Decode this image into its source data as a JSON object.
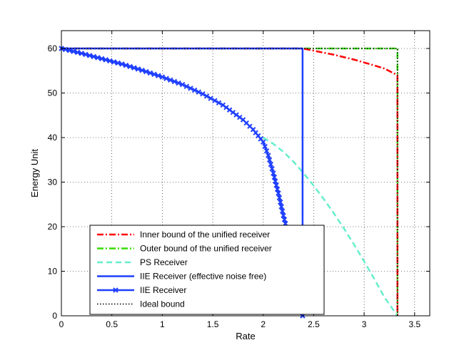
{
  "chart_data": {
    "type": "line",
    "title": "",
    "xlabel": "Rate",
    "ylabel": "Energy Unit",
    "xlim": [
      0,
      3.65
    ],
    "ylim": [
      0,
      64
    ],
    "xticks": [
      0,
      0.5,
      1,
      1.5,
      2,
      2.5,
      3,
      3.5
    ],
    "xtick_labels": [
      "0",
      "0.5",
      "1",
      "1.5",
      "2",
      "2.5",
      "3",
      "3.5"
    ],
    "yticks": [
      0,
      10,
      20,
      30,
      40,
      50,
      60
    ],
    "ytick_labels": [
      "0",
      "10",
      "20",
      "30",
      "40",
      "50",
      "60"
    ],
    "grid": true,
    "legend_position": "lower-left",
    "series": [
      {
        "name": "Inner bound of the unified receiver",
        "color": "#ff0000",
        "style": "dashdot",
        "x": [
          0,
          2.39,
          2.5,
          2.7,
          2.9,
          3.1,
          3.2,
          3.33,
          3.33,
          3.33
        ],
        "y": [
          60,
          60,
          59.5,
          58.6,
          57.5,
          56.2,
          55.5,
          54,
          20,
          0
        ]
      },
      {
        "name": "Outer bound of the unified receiver",
        "color": "#33dd00",
        "style": "dashdot",
        "x": [
          0,
          3.33,
          3.33
        ],
        "y": [
          60,
          60,
          0
        ]
      },
      {
        "name": "PS Receiver",
        "color": "#66eecc",
        "style": "dashed",
        "x": [
          2.0,
          2.1,
          2.2,
          2.3,
          2.4,
          2.5,
          2.6,
          2.7,
          2.8,
          2.9,
          3.0,
          3.1,
          3.2,
          3.33
        ],
        "y": [
          40,
          38.6,
          36.8,
          34.6,
          32.0,
          29.2,
          26.2,
          23.0,
          19.6,
          16.0,
          12.2,
          8.3,
          4.2,
          0
        ]
      },
      {
        "name": "IIE Receiver (effective noise free)",
        "color": "#1f3fff",
        "style": "solid",
        "x": [
          0,
          2.39,
          2.39
        ],
        "y": [
          60,
          60,
          0
        ]
      },
      {
        "name": "IIE Receiver",
        "color": "#1f3fff",
        "style": "solid-x",
        "x": [
          0,
          0.2,
          0.4,
          0.6,
          0.8,
          1.0,
          1.2,
          1.4,
          1.6,
          1.8,
          1.9,
          2.0,
          2.05,
          2.1,
          2.15,
          2.2,
          2.25,
          2.3,
          2.33,
          2.36,
          2.38,
          2.39
        ],
        "y": [
          60,
          58.9,
          57.7,
          56.5,
          55.1,
          53.6,
          51.9,
          49.8,
          47.3,
          44.0,
          41.8,
          39.0,
          36.0,
          32.0,
          27.5,
          22.5,
          18.0,
          12.5,
          8.0,
          4.0,
          1.5,
          0
        ]
      },
      {
        "name": "Ideal bound",
        "color": "#000000",
        "style": "dotted",
        "x": [
          0,
          3.33,
          3.33
        ],
        "y": [
          60,
          60,
          0
        ]
      }
    ]
  }
}
